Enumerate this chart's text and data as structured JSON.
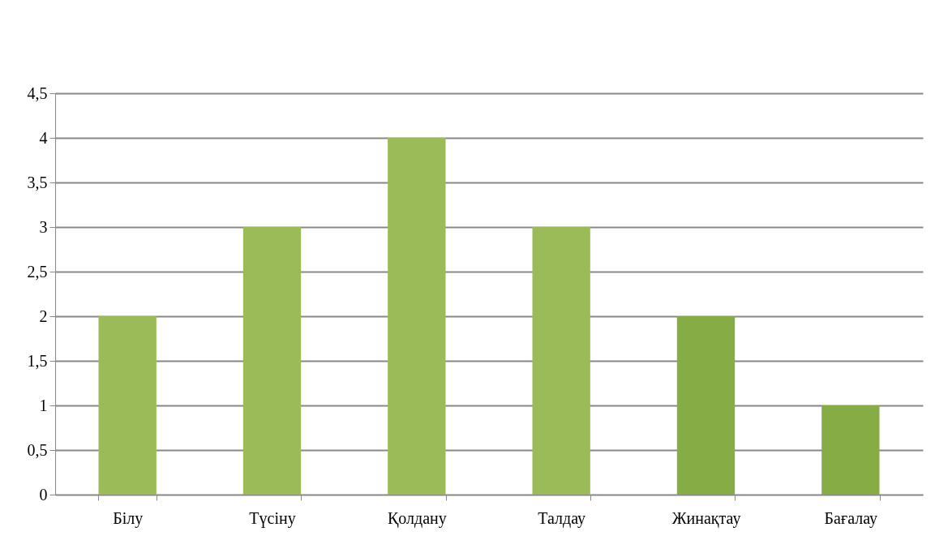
{
  "chart_data": {
    "type": "bar",
    "categories": [
      "Білу",
      "Түсіну",
      "Қолдану",
      "Талдау",
      "Жинақтау",
      "Бағалау"
    ],
    "values": [
      2,
      3,
      4,
      3,
      2,
      1
    ],
    "colors": [
      "#9bbb59",
      "#9bbb59",
      "#9bbb59",
      "#9bbb59",
      "#86ad45",
      "#86ad45"
    ],
    "ylim": [
      0,
      4.5
    ],
    "yticks": [
      0,
      {
        "value": 0.5,
        "label": "0,5"
      },
      1,
      {
        "value": 1.5,
        "label": "1,5"
      },
      2,
      {
        "value": 2.5,
        "label": "2,5"
      },
      3,
      {
        "value": 3.5,
        "label": "3,5"
      },
      4,
      {
        "value": 4.5,
        "label": "4,5"
      }
    ],
    "grid": "y"
  }
}
